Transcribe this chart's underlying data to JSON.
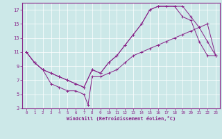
{
  "xlabel": "Windchill (Refroidissement éolien,°C)",
  "bg_color": "#cce8e8",
  "line_color": "#882288",
  "xlim": [
    -0.5,
    23.5
  ],
  "ylim": [
    3,
    18
  ],
  "xticks": [
    0,
    1,
    2,
    3,
    4,
    5,
    6,
    7,
    8,
    9,
    10,
    11,
    12,
    13,
    14,
    15,
    16,
    17,
    18,
    19,
    20,
    21,
    22,
    23
  ],
  "yticks": [
    3,
    5,
    7,
    9,
    11,
    13,
    15,
    17
  ],
  "line1_x": [
    0,
    1,
    2,
    3,
    4,
    5,
    6,
    7,
    7.5,
    8,
    9,
    10,
    11,
    12,
    13,
    14,
    15,
    16,
    17,
    18,
    19,
    20,
    21,
    22,
    23
  ],
  "line1_y": [
    11,
    9.5,
    8.5,
    6.5,
    6.0,
    5.5,
    5.5,
    5.0,
    3.5,
    7.5,
    7.5,
    8.0,
    8.5,
    9.5,
    10.5,
    11.0,
    11.5,
    12.0,
    12.5,
    13.0,
    13.5,
    14.0,
    14.5,
    15.0,
    10.5
  ],
  "line2_x": [
    0,
    1,
    2,
    3,
    4,
    5,
    6,
    7,
    8,
    9,
    10,
    11,
    12,
    13,
    14,
    15,
    16,
    17,
    18,
    19,
    20,
    21,
    22,
    23
  ],
  "line2_y": [
    11,
    9.5,
    8.5,
    8.0,
    7.5,
    7.0,
    6.5,
    6.0,
    8.5,
    8.0,
    9.5,
    10.5,
    12.0,
    13.5,
    15.0,
    17.0,
    17.5,
    17.5,
    17.5,
    17.5,
    16.0,
    14.5,
    12.5,
    10.5
  ],
  "line3_x": [
    0,
    1,
    2,
    3,
    4,
    5,
    6,
    7,
    8,
    9,
    10,
    11,
    12,
    13,
    14,
    15,
    16,
    17,
    18,
    19,
    20,
    21,
    22,
    23
  ],
  "line3_y": [
    11,
    9.5,
    8.5,
    8.0,
    7.5,
    7.0,
    6.5,
    6.0,
    8.5,
    8.0,
    9.5,
    10.5,
    12.0,
    13.5,
    15.0,
    17.0,
    17.5,
    17.5,
    17.5,
    16.0,
    15.5,
    12.5,
    10.5,
    10.5
  ]
}
